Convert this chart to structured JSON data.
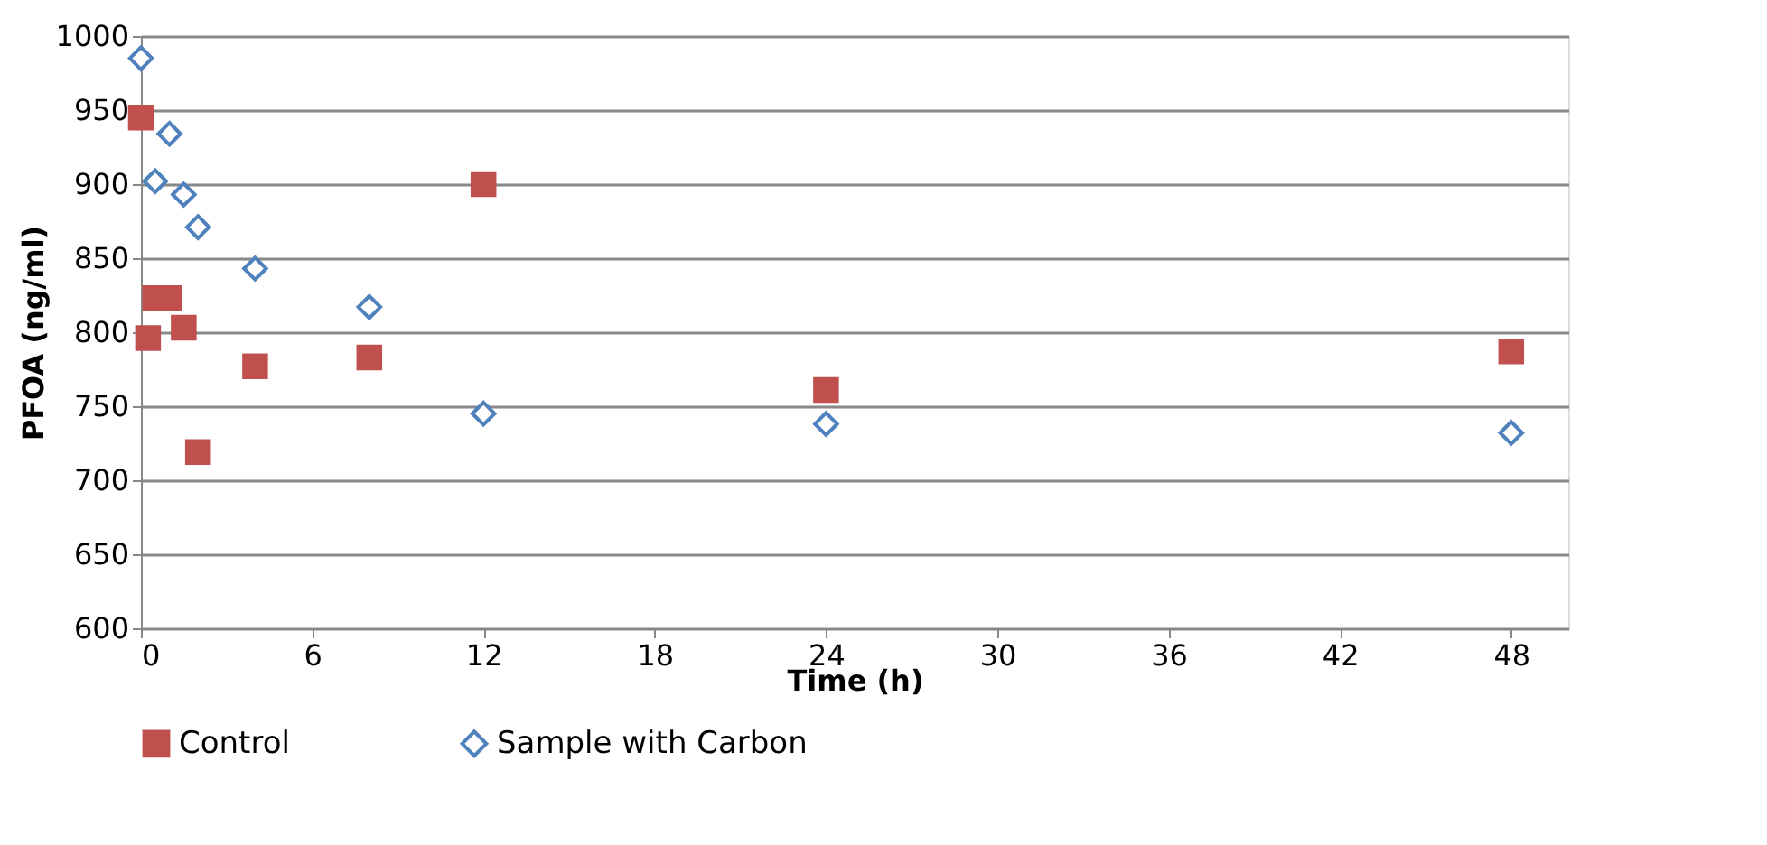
{
  "chart_data": {
    "type": "scatter",
    "xlabel": "Time (h)",
    "ylabel": "PFOA (ng/ml)",
    "xlim": [
      0,
      50
    ],
    "xticks": [
      0,
      6,
      12,
      18,
      24,
      30,
      36,
      42,
      48
    ],
    "ylim": [
      600,
      1000
    ],
    "yticks": [
      600,
      650,
      700,
      750,
      800,
      850,
      900,
      950,
      1000
    ],
    "grid": "y",
    "legend": "bottom",
    "series": [
      {
        "name": "Control",
        "color": "#c0504d",
        "marker": "square",
        "x": [
          0,
          0.25,
          0.5,
          1,
          1.5,
          2,
          4,
          8,
          12,
          24,
          48
        ],
        "values": [
          945,
          796,
          823,
          823,
          803,
          719,
          777,
          783,
          900,
          761,
          787
        ]
      },
      {
        "name": "Sample with Carbon",
        "color": "#4f81bd",
        "marker": "diamond",
        "x": [
          0,
          0.5,
          1,
          1.5,
          2,
          4,
          8,
          12,
          24,
          48
        ],
        "values": [
          985,
          902,
          934,
          893,
          871,
          843,
          817,
          745,
          738,
          732
        ]
      }
    ]
  }
}
